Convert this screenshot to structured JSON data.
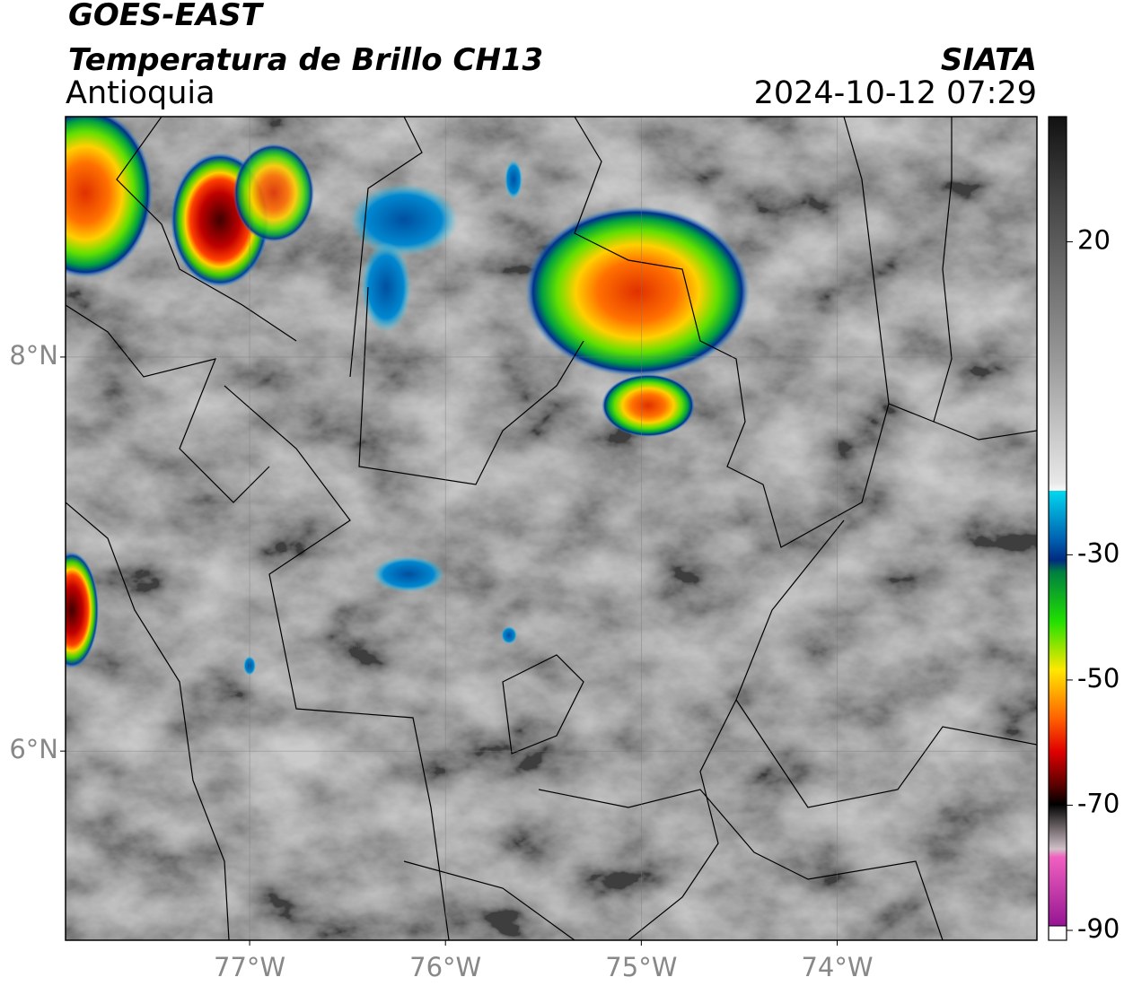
{
  "header": {
    "title": "GOES-EAST",
    "subtitle": "Temperatura de Brillo CH13",
    "region": "Antioquia",
    "source": "SIATA",
    "datetime": "2024-10-12 07:29"
  },
  "map": {
    "xlim": [
      -77.94,
      -72.98
    ],
    "ylim": [
      5.04,
      9.22
    ],
    "xticks": [
      {
        "value": -77,
        "label": "77°W"
      },
      {
        "value": -76,
        "label": "76°W"
      },
      {
        "value": -75,
        "label": "75°W"
      },
      {
        "value": -74,
        "label": "74°W"
      }
    ],
    "yticks": [
      {
        "value": 8,
        "label": "8°N"
      },
      {
        "value": 6,
        "label": "6°N"
      }
    ],
    "grid": true
  },
  "colorbar": {
    "lim": [
      -90,
      40
    ],
    "ticks": [
      20,
      -30,
      -50,
      -70,
      -90
    ]
  }
}
